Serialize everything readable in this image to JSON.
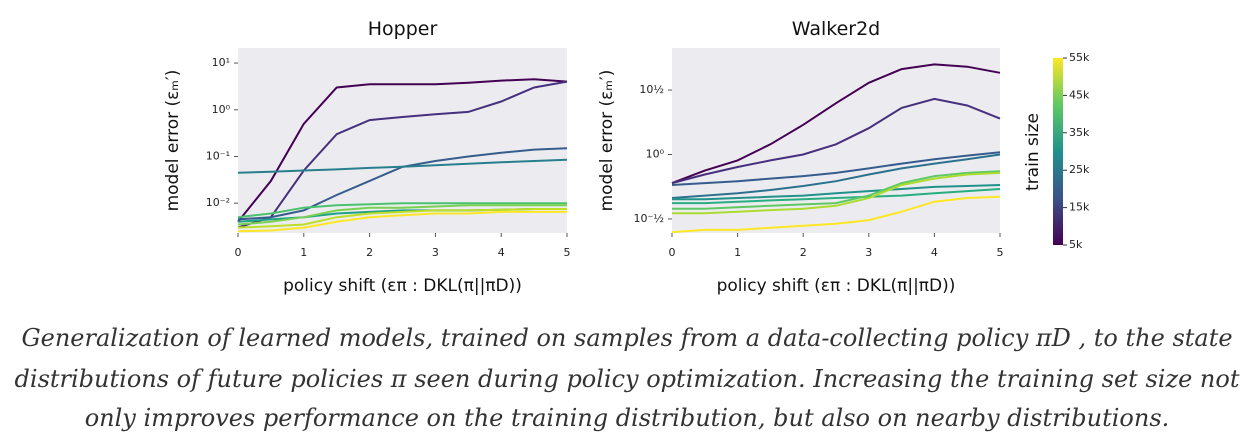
{
  "chart_data": [
    {
      "type": "line",
      "title": "Hopper",
      "y_label": "model error (εₘ′)",
      "x_label": "policy shift (επ : DKL(π||πD))",
      "log_y": true,
      "grid": false,
      "x": [
        0,
        0.5,
        1,
        1.5,
        2,
        2.5,
        3,
        3.5,
        4,
        4.5,
        5
      ],
      "xlim": [
        0,
        5
      ],
      "xticks": [
        0,
        1,
        2,
        3,
        4,
        5
      ],
      "ylim": [
        0.0023,
        21
      ],
      "yticks": [
        {
          "value": 0.01,
          "label": "10⁻²"
        },
        {
          "value": 0.1,
          "label": "10⁻¹"
        },
        {
          "value": 1,
          "label": "10⁰"
        },
        {
          "value": 10,
          "label": "10¹"
        }
      ],
      "series": [
        {
          "color": "#440154",
          "values": [
            0.004,
            0.03,
            0.5,
            3,
            3.5,
            3.5,
            3.5,
            3.8,
            4.2,
            4.5,
            4
          ]
        },
        {
          "color": "#46307e",
          "values": [
            0.003,
            0.005,
            0.05,
            0.3,
            0.6,
            0.7,
            0.8,
            0.9,
            1.5,
            3,
            4
          ]
        },
        {
          "color": "#365c8d",
          "values": [
            0.0045,
            0.005,
            0.007,
            0.015,
            0.03,
            0.06,
            0.08,
            0.1,
            0.12,
            0.14,
            0.15
          ]
        },
        {
          "color": "#277f8e",
          "values": [
            0.045,
            0.047,
            0.05,
            0.053,
            0.057,
            0.06,
            0.065,
            0.07,
            0.075,
            0.08,
            0.085
          ]
        },
        {
          "color": "#1fa187",
          "values": [
            0.004,
            0.0045,
            0.005,
            0.006,
            0.0065,
            0.007,
            0.007,
            0.007,
            0.0072,
            0.0075,
            0.0075
          ]
        },
        {
          "color": "#4ac16d",
          "values": [
            0.005,
            0.006,
            0.008,
            0.009,
            0.0095,
            0.01,
            0.01,
            0.01,
            0.01,
            0.01,
            0.01
          ]
        },
        {
          "color": "#7ad151",
          "values": [
            0.0035,
            0.004,
            0.005,
            0.007,
            0.008,
            0.008,
            0.0085,
            0.009,
            0.009,
            0.009,
            0.009
          ]
        },
        {
          "color": "#bddf26",
          "values": [
            0.003,
            0.0032,
            0.0035,
            0.005,
            0.006,
            0.0065,
            0.007,
            0.007,
            0.0072,
            0.0075,
            0.0075
          ]
        },
        {
          "color": "#fde725",
          "values": [
            0.0025,
            0.0026,
            0.003,
            0.004,
            0.005,
            0.0055,
            0.006,
            0.006,
            0.0065,
            0.0065,
            0.0065
          ]
        }
      ]
    },
    {
      "type": "line",
      "title": "Walker2d",
      "y_label": "model error (εₘ′)",
      "x_label": "policy shift (επ : DKL(π||πD))",
      "log_y": true,
      "grid": false,
      "x": [
        0,
        0.5,
        1,
        1.5,
        2,
        2.5,
        3,
        3.5,
        4,
        4.5,
        5
      ],
      "xlim": [
        0,
        5
      ],
      "xticks": [
        0,
        1,
        2,
        3,
        4,
        5
      ],
      "ylim": [
        0.246,
        6.7
      ],
      "yticks": [
        {
          "value": 0.3162,
          "label": "10⁻½"
        },
        {
          "value": 1,
          "label": "10⁰"
        },
        {
          "value": 3.1623,
          "label": "10½"
        }
      ],
      "series": [
        {
          "color": "#440154",
          "values": [
            0.6,
            0.75,
            0.9,
            1.2,
            1.7,
            2.5,
            3.6,
            4.6,
            5.0,
            4.8,
            4.3
          ]
        },
        {
          "color": "#46307e",
          "values": [
            0.6,
            0.7,
            0.8,
            0.9,
            1.0,
            1.2,
            1.6,
            2.3,
            2.7,
            2.4,
            1.9
          ]
        },
        {
          "color": "#365c8d",
          "values": [
            0.58,
            0.6,
            0.62,
            0.65,
            0.68,
            0.72,
            0.78,
            0.85,
            0.92,
            0.98,
            1.04
          ]
        },
        {
          "color": "#2c728e",
          "values": [
            0.46,
            0.48,
            0.5,
            0.53,
            0.57,
            0.62,
            0.7,
            0.78,
            0.85,
            0.92,
            1.0
          ]
        },
        {
          "color": "#21918c",
          "values": [
            0.45,
            0.45,
            0.46,
            0.47,
            0.48,
            0.5,
            0.52,
            0.54,
            0.56,
            0.57,
            0.58
          ]
        },
        {
          "color": "#28ae80",
          "values": [
            0.42,
            0.42,
            0.43,
            0.44,
            0.45,
            0.46,
            0.47,
            0.48,
            0.5,
            0.52,
            0.54
          ]
        },
        {
          "color": "#5ec962",
          "values": [
            0.38,
            0.38,
            0.39,
            0.4,
            0.41,
            0.42,
            0.48,
            0.6,
            0.68,
            0.72,
            0.74
          ]
        },
        {
          "color": "#addc30",
          "values": [
            0.35,
            0.35,
            0.36,
            0.37,
            0.38,
            0.4,
            0.46,
            0.58,
            0.65,
            0.7,
            0.72
          ]
        },
        {
          "color": "#fde725",
          "values": [
            0.25,
            0.26,
            0.26,
            0.27,
            0.28,
            0.29,
            0.31,
            0.36,
            0.43,
            0.46,
            0.47
          ]
        }
      ]
    }
  ],
  "colorbar": {
    "label": "train size",
    "lim": [
      5000,
      55000
    ],
    "ticks": [
      {
        "value": 5000,
        "label": "5k"
      },
      {
        "value": 15000,
        "label": "15k"
      },
      {
        "value": 25000,
        "label": "25k"
      },
      {
        "value": 35000,
        "label": "35k"
      },
      {
        "value": 45000,
        "label": "45k"
      },
      {
        "value": 55000,
        "label": "55k"
      }
    ]
  },
  "caption": [
    "Generalization of learned models, trained on samples from a data-collecting policy πD , to the state",
    "distributions of future policies π seen during policy optimization. Increasing the training set size not",
    "only improves performance on the training distribution, but also on nearby distributions."
  ]
}
